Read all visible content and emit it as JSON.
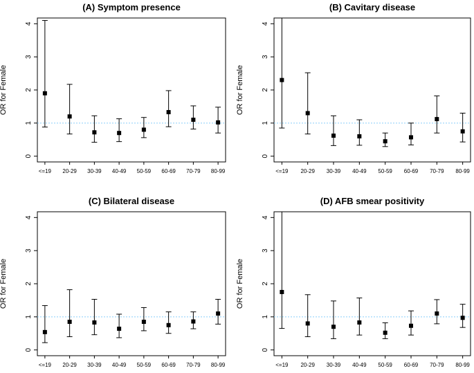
{
  "chart_data": [
    {
      "type": "errorbar",
      "title": "(A) Symptom presence",
      "ylabel": "OR for Female",
      "xlabel": "",
      "ylim": [
        0,
        4
      ],
      "yticks": [
        "0",
        "1",
        "2",
        "3",
        "4"
      ],
      "reference_line": 1,
      "categories": [
        "<=19",
        "20-29",
        "30-39",
        "40-49",
        "50-59",
        "60-69",
        "70-79",
        "80-99"
      ],
      "values": [
        1.9,
        1.2,
        0.72,
        0.7,
        0.8,
        1.33,
        1.1,
        1.02
      ],
      "lower": [
        0.88,
        0.67,
        0.42,
        0.44,
        0.56,
        0.89,
        0.82,
        0.7
      ],
      "upper": [
        4.1,
        2.17,
        1.22,
        1.13,
        1.17,
        1.98,
        1.52,
        1.48
      ]
    },
    {
      "type": "errorbar",
      "title": "(B) Cavitary disease",
      "ylabel": "OR for Female",
      "xlabel": "",
      "ylim": [
        0,
        4
      ],
      "yticks": [
        "0",
        "1",
        "2",
        "3",
        "4"
      ],
      "reference_line": 1,
      "categories": [
        "<=19",
        "20-29",
        "30-39",
        "40-49",
        "50-59",
        "60-69",
        "70-79",
        "80-99"
      ],
      "values": [
        2.3,
        1.3,
        0.62,
        0.6,
        0.45,
        0.57,
        1.12,
        0.75
      ],
      "lower": [
        0.85,
        0.67,
        0.32,
        0.33,
        0.29,
        0.34,
        0.7,
        0.43
      ],
      "upper": [
        4.3,
        2.52,
        1.22,
        1.1,
        0.7,
        1.0,
        1.82,
        1.3
      ]
    },
    {
      "type": "errorbar",
      "title": "(C) Bilateral disease",
      "ylabel": "OR for Female",
      "xlabel": "",
      "ylim": [
        0,
        4
      ],
      "yticks": [
        "0",
        "1",
        "2",
        "3",
        "4"
      ],
      "reference_line": 1,
      "categories": [
        "<=19",
        "20-29",
        "30-39",
        "40-49",
        "50-59",
        "60-69",
        "70-79",
        "80-99"
      ],
      "values": [
        0.54,
        0.85,
        0.83,
        0.64,
        0.85,
        0.75,
        0.86,
        1.1
      ],
      "lower": [
        0.22,
        0.4,
        0.46,
        0.37,
        0.58,
        0.5,
        0.64,
        0.78
      ],
      "upper": [
        1.34,
        1.82,
        1.53,
        1.08,
        1.28,
        1.15,
        1.15,
        1.53
      ]
    },
    {
      "type": "errorbar",
      "title": "(D) AFB smear positivity",
      "ylabel": "OR for Female",
      "xlabel": "",
      "ylim": [
        0,
        4
      ],
      "yticks": [
        "0",
        "1",
        "2",
        "3",
        "4"
      ],
      "reference_line": 1,
      "categories": [
        "<=19",
        "20-29",
        "30-39",
        "40-49",
        "50-59",
        "60-69",
        "70-79",
        "80-99"
      ],
      "values": [
        1.75,
        0.8,
        0.7,
        0.83,
        0.52,
        0.73,
        1.1,
        0.97
      ],
      "lower": [
        0.65,
        0.4,
        0.34,
        0.45,
        0.34,
        0.45,
        0.79,
        0.68
      ],
      "upper": [
        4.3,
        1.67,
        1.48,
        1.57,
        0.82,
        1.18,
        1.52,
        1.38
      ]
    }
  ],
  "colors": {
    "axis": "#000000",
    "reference_line": "#87cefa",
    "marker": "#000000"
  }
}
